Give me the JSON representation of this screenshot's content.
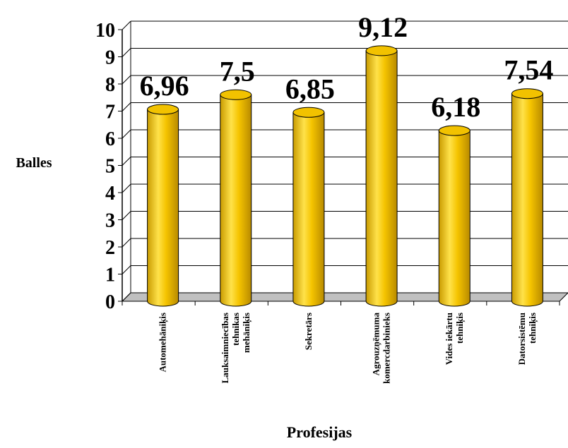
{
  "chart_data": {
    "type": "bar",
    "categories": [
      [
        "Automehāniķis"
      ],
      [
        "Lauksaimniecības",
        "tehnikas",
        "mehāniķis"
      ],
      [
        "Sekretārs"
      ],
      [
        "Agrouzņēmuma",
        "komercdarbinieks"
      ],
      [
        "Vides iekārtu",
        "tehniķis"
      ],
      [
        "Datorsistēmu",
        "tehniķis"
      ]
    ],
    "values": [
      6.96,
      7.5,
      6.85,
      9.12,
      6.18,
      7.54
    ],
    "data_labels": [
      "6,96",
      "7,5",
      "6,85",
      "9,12",
      "6,18",
      "7,54"
    ],
    "yticks": [
      "0",
      "1",
      "2",
      "3",
      "4",
      "5",
      "6",
      "7",
      "8",
      "9",
      "10"
    ],
    "ylim": [
      0,
      10
    ],
    "ylabel": "Balles",
    "xlabel": "Profesijas",
    "grid": true,
    "bar_color": "#F2C200",
    "bar_shade": "#B88F00",
    "floor_color": "#C0C0C0"
  }
}
